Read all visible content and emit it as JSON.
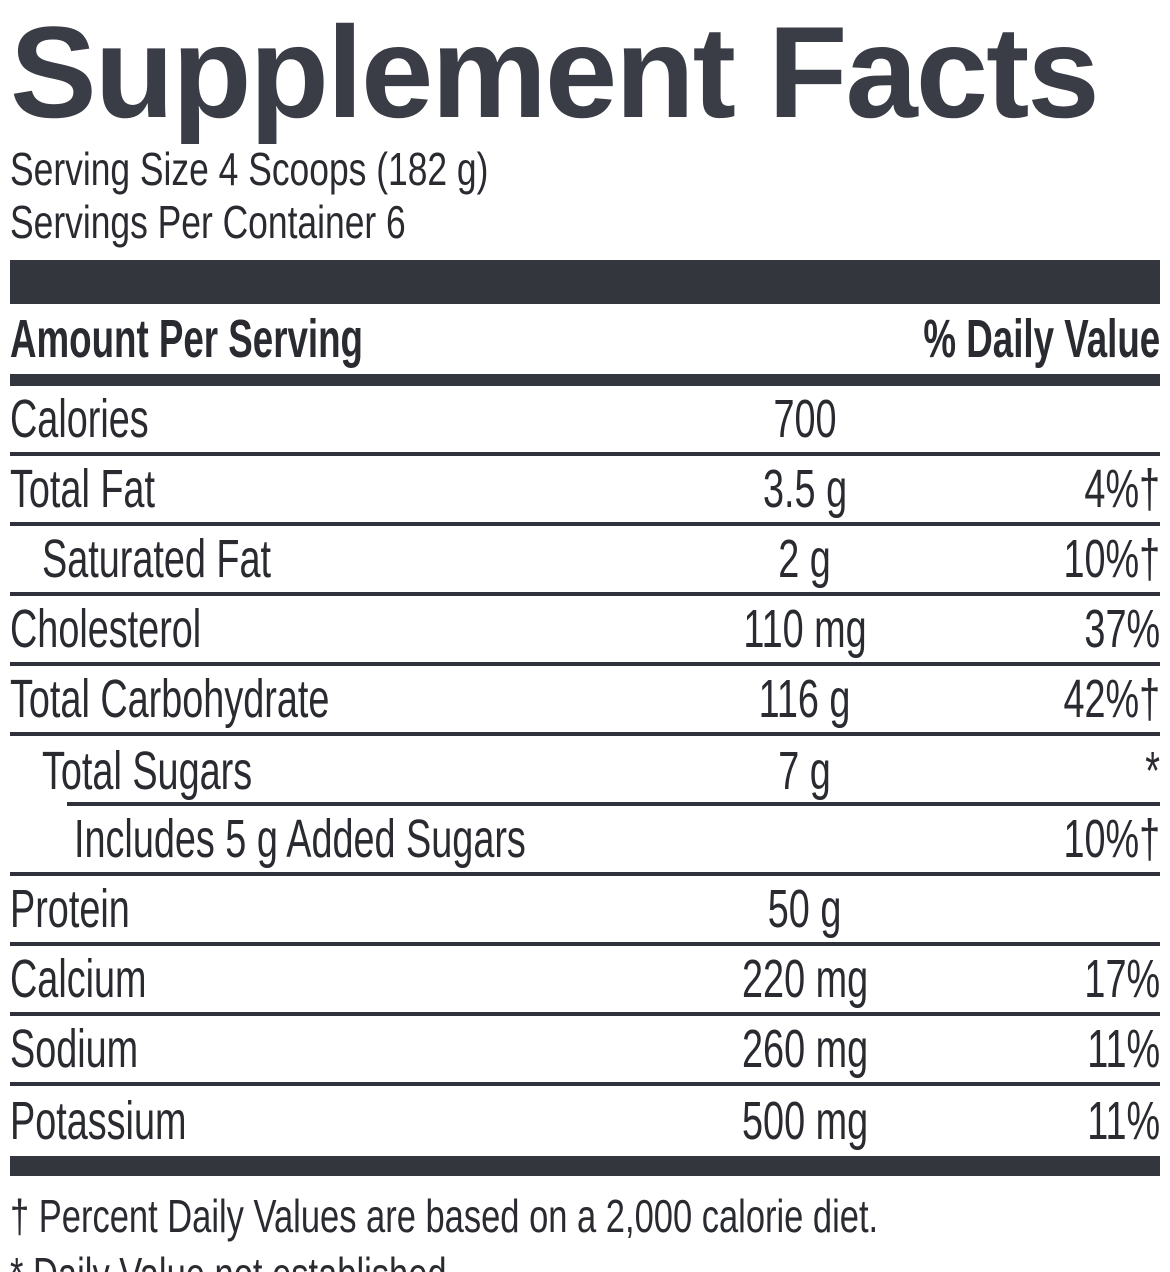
{
  "title": "Supplement Facts",
  "serving": {
    "serving_size": "Serving Size 4 Scoops (182 g)",
    "servings_per_container": "Servings Per Container 6"
  },
  "table": {
    "header": {
      "amount_per_serving": "Amount Per Serving",
      "daily_value": "% Daily Value"
    },
    "rows": [
      {
        "name": "Calories",
        "amount": "700",
        "dv": ""
      },
      {
        "name": "Total Fat",
        "amount": "3.5 g",
        "dv": "4%†"
      },
      {
        "name": "Saturated Fat",
        "amount": "2 g",
        "dv": "10%†"
      },
      {
        "name": "Cholesterol",
        "amount": "110 mg",
        "dv": "37%"
      },
      {
        "name": "Total Carbohydrate",
        "amount": "116 g",
        "dv": "42%†"
      },
      {
        "name": "Total Sugars",
        "amount": "7 g",
        "dv": "*"
      },
      {
        "name": "Includes 5 g Added Sugars",
        "amount": "",
        "dv": "10%†"
      },
      {
        "name": "Protein",
        "amount": "50 g",
        "dv": ""
      },
      {
        "name": "Calcium",
        "amount": "220 mg",
        "dv": "17%"
      },
      {
        "name": "Sodium",
        "amount": "260 mg",
        "dv": "11%"
      },
      {
        "name": "Potassium",
        "amount": "500 mg",
        "dv": "11%"
      }
    ]
  },
  "footnotes": [
    "† Percent Daily Values are based on a 2,000 calorie diet.",
    "* Daily Value not established."
  ],
  "colors": {
    "text": "#292b31",
    "rule": "#2f323a",
    "bar": "#33363d",
    "title": "#3a3d46",
    "background": "#ffffff"
  }
}
